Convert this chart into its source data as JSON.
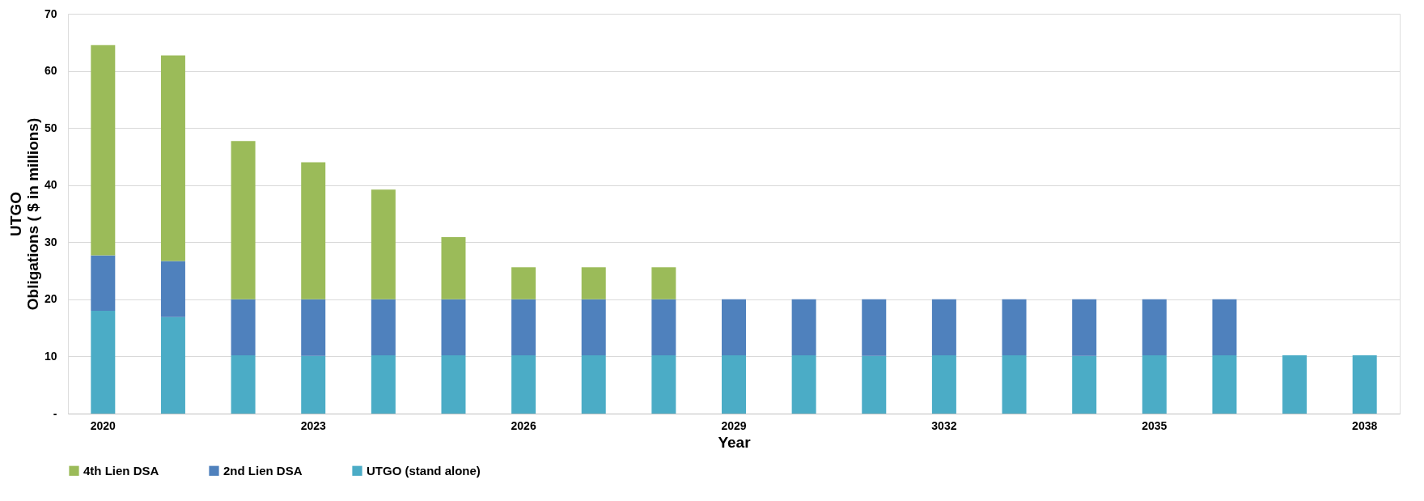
{
  "chart_data": {
    "type": "bar",
    "stacked": true,
    "categories": [
      "2020",
      null,
      null,
      "2023",
      null,
      null,
      "2026",
      null,
      null,
      "2029",
      null,
      null,
      "3032",
      null,
      null,
      "2035",
      null,
      null,
      "2038"
    ],
    "series": [
      {
        "name": "UTGO  (stand alone)",
        "color": "#4bacc6",
        "values": [
          18.0,
          16.9,
          10.2,
          10.1,
          10.2,
          10.2,
          10.2,
          10.2,
          10.2,
          10.2,
          10.2,
          10.1,
          10.2,
          10.2,
          10.1,
          10.2,
          10.2,
          10.2,
          10.2
        ]
      },
      {
        "name": "2nd Lien DSA",
        "color": "#4f81bd",
        "values": [
          9.7,
          9.8,
          9.8,
          9.9,
          9.8,
          9.8,
          9.8,
          9.8,
          9.8,
          9.8,
          9.8,
          9.9,
          9.8,
          9.8,
          9.9,
          9.8,
          9.8,
          null,
          null
        ]
      },
      {
        "name": "4th Lien DSA",
        "color": "#9bbb59",
        "values": [
          36.8,
          36.0,
          27.7,
          24.0,
          19.2,
          10.9,
          5.6,
          5.6,
          5.6,
          null,
          null,
          null,
          null,
          null,
          null,
          null,
          null,
          null,
          null
        ]
      }
    ],
    "xlabel": "Year",
    "ylabel": "UTGO\nObligations ( $ in millions)",
    "ylim": [
      0,
      70
    ],
    "yticks": [
      {
        "value": 0,
        "label": "-"
      },
      10,
      20,
      30,
      40,
      50,
      60,
      70
    ],
    "grid": "y",
    "legend": "bottom"
  }
}
